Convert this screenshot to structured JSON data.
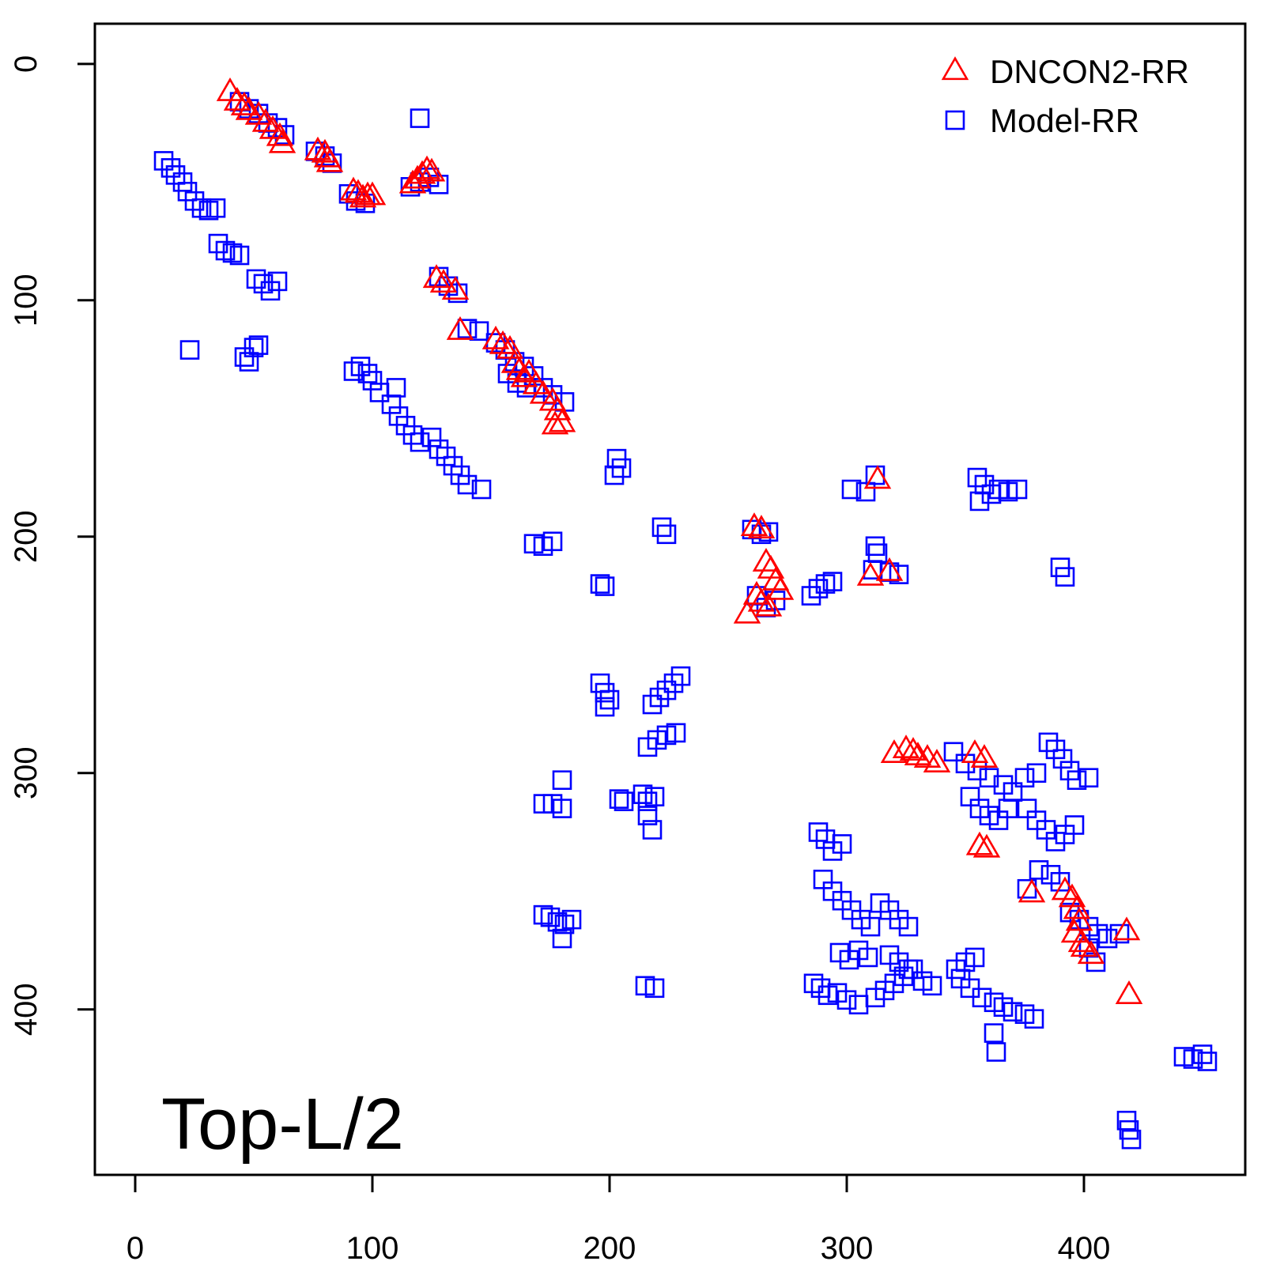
{
  "chart_data": {
    "type": "scatter",
    "title": "",
    "xlabel": "",
    "ylabel": "",
    "xlim": [
      -17,
      468
    ],
    "ylim": [
      470,
      -17
    ],
    "y_axis_reversed": true,
    "x_ticks": [
      0,
      100,
      200,
      300,
      400
    ],
    "y_ticks": [
      0,
      100,
      200,
      300,
      400
    ],
    "x_tick_labels": [
      "0",
      "100",
      "200",
      "300",
      "400"
    ],
    "y_tick_labels": [
      "0",
      "100",
      "200",
      "300",
      "400"
    ],
    "grid": false,
    "legend_position": "top-right",
    "annotation": "Top-L/2",
    "series": [
      {
        "name": "DNCON2-RR",
        "marker": "triangle",
        "color": "#ff0000",
        "points": [
          [
            40,
            12
          ],
          [
            43,
            16
          ],
          [
            46,
            18
          ],
          [
            48,
            20
          ],
          [
            52,
            22
          ],
          [
            55,
            25
          ],
          [
            58,
            28
          ],
          [
            61,
            31
          ],
          [
            62,
            34
          ],
          [
            77,
            37
          ],
          [
            80,
            38
          ],
          [
            81,
            40
          ],
          [
            82,
            42
          ],
          [
            92,
            54
          ],
          [
            94,
            55
          ],
          [
            96,
            57
          ],
          [
            98,
            56
          ],
          [
            100,
            56
          ],
          [
            117,
            51
          ],
          [
            119,
            49
          ],
          [
            121,
            47
          ],
          [
            123,
            45
          ],
          [
            125,
            46
          ],
          [
            127,
            91
          ],
          [
            130,
            93
          ],
          [
            135,
            96
          ],
          [
            137,
            113
          ],
          [
            152,
            117
          ],
          [
            155,
            119
          ],
          [
            158,
            121
          ],
          [
            160,
            127
          ],
          [
            162,
            130
          ],
          [
            164,
            133
          ],
          [
            166,
            131
          ],
          [
            169,
            136
          ],
          [
            172,
            140
          ],
          [
            176,
            143
          ],
          [
            178,
            147
          ],
          [
            180,
            152
          ],
          [
            177,
            153
          ],
          [
            261,
            196
          ],
          [
            264,
            197
          ],
          [
            266,
            211
          ],
          [
            268,
            214
          ],
          [
            270,
            219
          ],
          [
            272,
            223
          ],
          [
            262,
            225
          ],
          [
            264,
            228
          ],
          [
            267,
            230
          ],
          [
            258,
            233
          ],
          [
            313,
            176
          ],
          [
            310,
            217
          ],
          [
            318,
            215
          ],
          [
            320,
            292
          ],
          [
            325,
            290
          ],
          [
            328,
            291
          ],
          [
            330,
            293
          ],
          [
            334,
            294
          ],
          [
            338,
            296
          ],
          [
            354,
            292
          ],
          [
            358,
            294
          ],
          [
            356,
            331
          ],
          [
            359,
            332
          ],
          [
            378,
            351
          ],
          [
            392,
            350
          ],
          [
            395,
            353
          ],
          [
            397,
            358
          ],
          [
            398,
            363
          ],
          [
            396,
            368
          ],
          [
            399,
            372
          ],
          [
            400,
            374
          ],
          [
            403,
            377
          ],
          [
            418,
            367
          ],
          [
            419,
            394
          ]
        ]
      },
      {
        "name": "Model-RR",
        "marker": "square",
        "color": "#0000ff",
        "points": [
          [
            12,
            41
          ],
          [
            15,
            44
          ],
          [
            17,
            47
          ],
          [
            20,
            50
          ],
          [
            22,
            54
          ],
          [
            25,
            58
          ],
          [
            28,
            61
          ],
          [
            31,
            62
          ],
          [
            34,
            61
          ],
          [
            35,
            76
          ],
          [
            38,
            79
          ],
          [
            41,
            80
          ],
          [
            44,
            81
          ],
          [
            51,
            91
          ],
          [
            54,
            93
          ],
          [
            57,
            96
          ],
          [
            60,
            92
          ],
          [
            23,
            121
          ],
          [
            46,
            124
          ],
          [
            48,
            126
          ],
          [
            50,
            120
          ],
          [
            52,
            119
          ],
          [
            44,
            16
          ],
          [
            48,
            19
          ],
          [
            52,
            21
          ],
          [
            56,
            25
          ],
          [
            60,
            27
          ],
          [
            63,
            30
          ],
          [
            76,
            37
          ],
          [
            80,
            39
          ],
          [
            83,
            42
          ],
          [
            90,
            55
          ],
          [
            93,
            58
          ],
          [
            97,
            59
          ],
          [
            120,
            23
          ],
          [
            116,
            52
          ],
          [
            120,
            50
          ],
          [
            124,
            48
          ],
          [
            128,
            51
          ],
          [
            92,
            130
          ],
          [
            95,
            128
          ],
          [
            98,
            131
          ],
          [
            100,
            134
          ],
          [
            103,
            139
          ],
          [
            110,
            137
          ],
          [
            108,
            144
          ],
          [
            111,
            149
          ],
          [
            114,
            153
          ],
          [
            117,
            157
          ],
          [
            120,
            160
          ],
          [
            125,
            158
          ],
          [
            128,
            163
          ],
          [
            131,
            166
          ],
          [
            134,
            170
          ],
          [
            137,
            174
          ],
          [
            140,
            178
          ],
          [
            146,
            180
          ],
          [
            128,
            90
          ],
          [
            132,
            94
          ],
          [
            136,
            97
          ],
          [
            140,
            112
          ],
          [
            145,
            113
          ],
          [
            152,
            118
          ],
          [
            156,
            121
          ],
          [
            160,
            126
          ],
          [
            164,
            128
          ],
          [
            168,
            132
          ],
          [
            172,
            137
          ],
          [
            176,
            140
          ],
          [
            181,
            143
          ],
          [
            157,
            131
          ],
          [
            161,
            135
          ],
          [
            165,
            137
          ],
          [
            203,
            167
          ],
          [
            205,
            171
          ],
          [
            202,
            174
          ],
          [
            168,
            203
          ],
          [
            172,
            204
          ],
          [
            176,
            202
          ],
          [
            196,
            220
          ],
          [
            198,
            221
          ],
          [
            222,
            196
          ],
          [
            224,
            199
          ],
          [
            196,
            262
          ],
          [
            198,
            266
          ],
          [
            200,
            269
          ],
          [
            198,
            272
          ],
          [
            218,
            271
          ],
          [
            221,
            268
          ],
          [
            224,
            265
          ],
          [
            227,
            262
          ],
          [
            230,
            259
          ],
          [
            216,
            289
          ],
          [
            220,
            286
          ],
          [
            224,
            284
          ],
          [
            228,
            283
          ],
          [
            180,
            303
          ],
          [
            172,
            313
          ],
          [
            176,
            313
          ],
          [
            180,
            315
          ],
          [
            204,
            311
          ],
          [
            206,
            312
          ],
          [
            214,
            309
          ],
          [
            216,
            312
          ],
          [
            219,
            310
          ],
          [
            216,
            318
          ],
          [
            218,
            324
          ],
          [
            172,
            360
          ],
          [
            175,
            361
          ],
          [
            178,
            363
          ],
          [
            181,
            364
          ],
          [
            184,
            362
          ],
          [
            180,
            370
          ],
          [
            215,
            390
          ],
          [
            219,
            391
          ],
          [
            260,
            197
          ],
          [
            264,
            199
          ],
          [
            267,
            198
          ],
          [
            262,
            225
          ],
          [
            266,
            230
          ],
          [
            270,
            227
          ],
          [
            285,
            225
          ],
          [
            288,
            222
          ],
          [
            291,
            220
          ],
          [
            294,
            219
          ],
          [
            312,
            174
          ],
          [
            312,
            204
          ],
          [
            313,
            207
          ],
          [
            311,
            214
          ],
          [
            318,
            215
          ],
          [
            322,
            216
          ],
          [
            302,
            180
          ],
          [
            308,
            181
          ],
          [
            355,
            175
          ],
          [
            358,
            178
          ],
          [
            361,
            182
          ],
          [
            364,
            180
          ],
          [
            368,
            181
          ],
          [
            372,
            180
          ],
          [
            356,
            185
          ],
          [
            390,
            213
          ],
          [
            392,
            217
          ],
          [
            345,
            291
          ],
          [
            350,
            296
          ],
          [
            355,
            299
          ],
          [
            360,
            302
          ],
          [
            366,
            305
          ],
          [
            370,
            308
          ],
          [
            375,
            302
          ],
          [
            380,
            300
          ],
          [
            352,
            310
          ],
          [
            356,
            315
          ],
          [
            360,
            318
          ],
          [
            364,
            320
          ],
          [
            368,
            315
          ],
          [
            385,
            287
          ],
          [
            388,
            290
          ],
          [
            391,
            294
          ],
          [
            394,
            299
          ],
          [
            397,
            303
          ],
          [
            402,
            302
          ],
          [
            376,
            315
          ],
          [
            380,
            320
          ],
          [
            384,
            324
          ],
          [
            388,
            329
          ],
          [
            392,
            326
          ],
          [
            396,
            322
          ],
          [
            381,
            341
          ],
          [
            386,
            343
          ],
          [
            390,
            346
          ],
          [
            376,
            349
          ],
          [
            288,
            325
          ],
          [
            291,
            328
          ],
          [
            294,
            333
          ],
          [
            298,
            330
          ],
          [
            290,
            345
          ],
          [
            294,
            350
          ],
          [
            298,
            354
          ],
          [
            302,
            358
          ],
          [
            306,
            362
          ],
          [
            310,
            365
          ],
          [
            314,
            355
          ],
          [
            318,
            358
          ],
          [
            322,
            362
          ],
          [
            326,
            365
          ],
          [
            297,
            376
          ],
          [
            301,
            379
          ],
          [
            305,
            375
          ],
          [
            309,
            378
          ],
          [
            286,
            389
          ],
          [
            289,
            391
          ],
          [
            292,
            394
          ],
          [
            296,
            393
          ],
          [
            300,
            396
          ],
          [
            305,
            398
          ],
          [
            312,
            395
          ],
          [
            316,
            392
          ],
          [
            320,
            389
          ],
          [
            324,
            386
          ],
          [
            328,
            383
          ],
          [
            332,
            388
          ],
          [
            336,
            390
          ],
          [
            318,
            377
          ],
          [
            322,
            380
          ],
          [
            326,
            383
          ],
          [
            346,
            383
          ],
          [
            348,
            387
          ],
          [
            350,
            380
          ],
          [
            354,
            378
          ],
          [
            352,
            391
          ],
          [
            357,
            395
          ],
          [
            362,
            397
          ],
          [
            366,
            399
          ],
          [
            370,
            401
          ],
          [
            375,
            402
          ],
          [
            379,
            404
          ],
          [
            362,
            410
          ],
          [
            363,
            418
          ],
          [
            394,
            359
          ],
          [
            398,
            362
          ],
          [
            402,
            365
          ],
          [
            406,
            368
          ],
          [
            410,
            370
          ],
          [
            415,
            368
          ],
          [
            402,
            374
          ],
          [
            405,
            380
          ],
          [
            420,
            455
          ],
          [
            419,
            451
          ],
          [
            418,
            447
          ],
          [
            442,
            420
          ],
          [
            446,
            421
          ],
          [
            450,
            419
          ],
          [
            452,
            422
          ]
        ]
      }
    ]
  }
}
